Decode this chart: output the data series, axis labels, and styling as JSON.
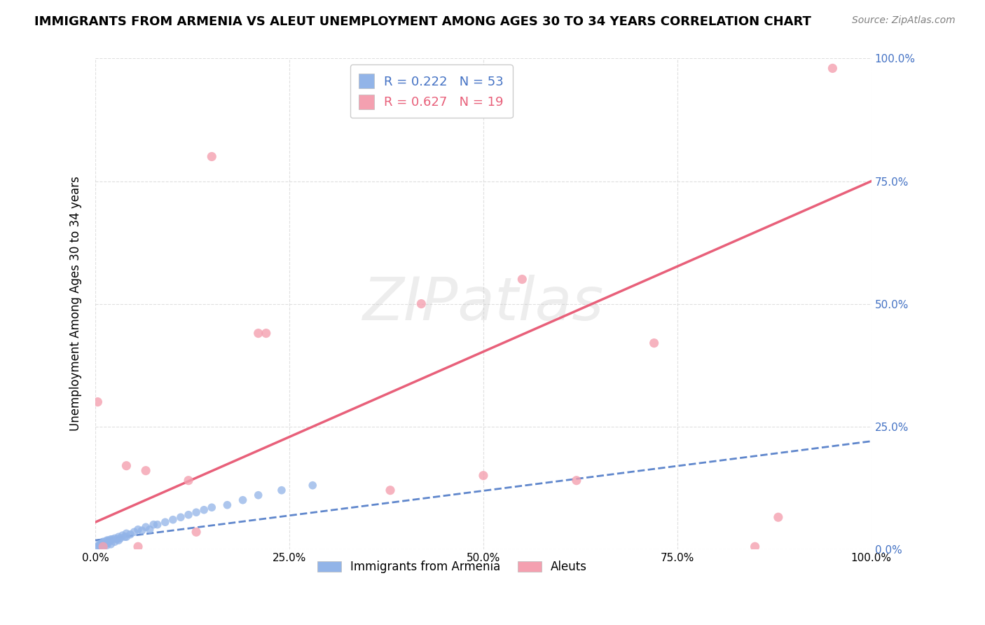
{
  "title": "IMMIGRANTS FROM ARMENIA VS ALEUT UNEMPLOYMENT AMONG AGES 30 TO 34 YEARS CORRELATION CHART",
  "source": "Source: ZipAtlas.com",
  "ylabel": "Unemployment Among Ages 30 to 34 years",
  "watermark": "ZIPatlas",
  "legend_r1": "R = 0.222",
  "legend_n1": "N = 53",
  "legend_r2": "R = 0.627",
  "legend_n2": "N = 19",
  "xlim": [
    0.0,
    1.0
  ],
  "ylim": [
    0.0,
    1.0
  ],
  "xtick_positions": [
    0.0,
    0.25,
    0.5,
    0.75,
    1.0
  ],
  "ytick_positions": [
    0.0,
    0.25,
    0.5,
    0.75,
    1.0
  ],
  "xticklabels": [
    "0.0%",
    "25.0%",
    "50.0%",
    "75.0%",
    "100.0%"
  ],
  "right_yticklabels": [
    "0.0%",
    "25.0%",
    "50.0%",
    "75.0%",
    "100.0%"
  ],
  "color_armenia": "#92b4e8",
  "color_aleut": "#f4a0b0",
  "color_line_armenia": "#4472c4",
  "color_line_aleut": "#e8607a",
  "armenia_x": [
    0.003,
    0.005,
    0.005,
    0.006,
    0.007,
    0.008,
    0.008,
    0.009,
    0.01,
    0.01,
    0.01,
    0.012,
    0.012,
    0.013,
    0.015,
    0.015,
    0.015,
    0.016,
    0.017,
    0.018,
    0.02,
    0.02,
    0.022,
    0.025,
    0.025,
    0.028,
    0.03,
    0.03,
    0.032,
    0.035,
    0.038,
    0.04,
    0.04,
    0.045,
    0.05,
    0.055,
    0.06,
    0.065,
    0.07,
    0.075,
    0.08,
    0.09,
    0.1,
    0.11,
    0.12,
    0.13,
    0.14,
    0.15,
    0.17,
    0.19,
    0.21,
    0.24,
    0.28
  ],
  "armenia_y": [
    0.005,
    0.005,
    0.01,
    0.008,
    0.01,
    0.008,
    0.012,
    0.01,
    0.005,
    0.01,
    0.015,
    0.012,
    0.015,
    0.01,
    0.008,
    0.012,
    0.018,
    0.015,
    0.018,
    0.015,
    0.01,
    0.02,
    0.02,
    0.015,
    0.022,
    0.02,
    0.018,
    0.025,
    0.022,
    0.028,
    0.025,
    0.025,
    0.032,
    0.03,
    0.035,
    0.04,
    0.038,
    0.045,
    0.04,
    0.05,
    0.05,
    0.055,
    0.06,
    0.065,
    0.07,
    0.075,
    0.08,
    0.085,
    0.09,
    0.1,
    0.11,
    0.12,
    0.13
  ],
  "aleut_x": [
    0.003,
    0.01,
    0.04,
    0.055,
    0.065,
    0.12,
    0.13,
    0.15,
    0.21,
    0.22,
    0.38,
    0.42,
    0.5,
    0.55,
    0.62,
    0.72,
    0.85,
    0.88,
    0.95
  ],
  "aleut_y": [
    0.3,
    0.005,
    0.17,
    0.005,
    0.16,
    0.14,
    0.035,
    0.8,
    0.44,
    0.44,
    0.12,
    0.5,
    0.15,
    0.55,
    0.14,
    0.42,
    0.005,
    0.065,
    0.98
  ],
  "line_arm_x0": 0.0,
  "line_arm_x1": 1.0,
  "line_arm_y0": 0.018,
  "line_arm_y1": 0.22,
  "line_ale_x0": 0.0,
  "line_ale_x1": 1.0,
  "line_ale_y0": 0.055,
  "line_ale_y1": 0.75,
  "background_color": "#ffffff",
  "grid_color": "#d8d8d8",
  "fig_width": 14.06,
  "fig_height": 8.92,
  "dpi": 100
}
